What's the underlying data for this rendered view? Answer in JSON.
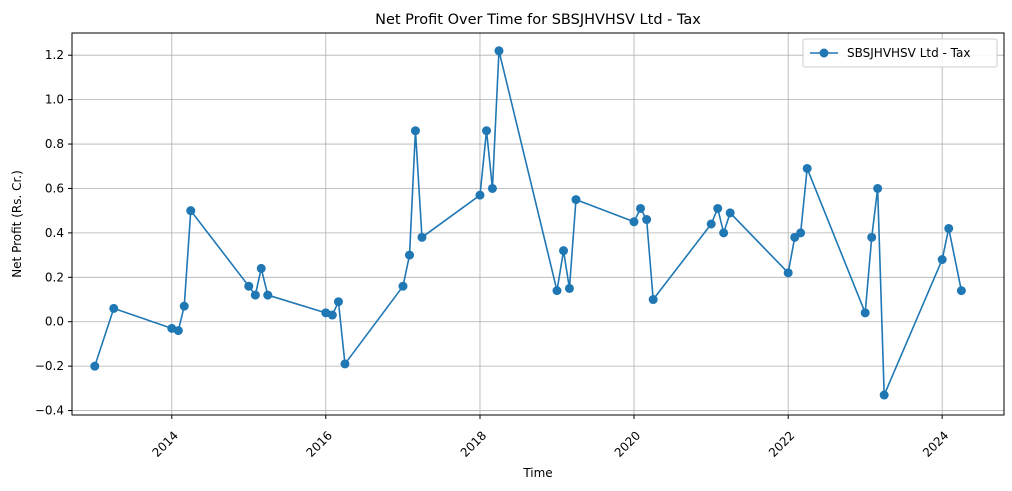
{
  "chart_data": {
    "type": "line",
    "title": "Net Profit Over Time for SBSJHVHSV Ltd - Tax",
    "xlabel": "Time",
    "ylabel": "Net Profit (Rs. Cr.)",
    "x_axis_type": "time",
    "xlim": [
      "2012-09-15",
      "2024-10-20"
    ],
    "ylim": [
      -0.42,
      1.3
    ],
    "x_ticks": [
      "2014",
      "2016",
      "2018",
      "2020",
      "2022",
      "2024"
    ],
    "y_ticks": [
      "−0.4",
      "−0.2",
      "0.0",
      "0.2",
      "0.4",
      "0.6",
      "0.8",
      "1.0",
      "1.2"
    ],
    "grid": true,
    "legend": "top-right",
    "color": "#1f77b4",
    "series": [
      {
        "name": "SBSJHVHSV Ltd - Tax",
        "x": [
          "2013-01-01",
          "2013-04-01",
          "2014-01-01",
          "2014-02-01",
          "2014-03-01",
          "2014-04-01",
          "2015-01-01",
          "2015-02-01",
          "2015-03-01",
          "2015-04-01",
          "2016-01-01",
          "2016-02-01",
          "2016-03-01",
          "2016-04-01",
          "2017-01-01",
          "2017-02-01",
          "2017-03-01",
          "2017-04-01",
          "2018-01-01",
          "2018-02-01",
          "2018-03-01",
          "2018-04-01",
          "2019-01-01",
          "2019-02-01",
          "2019-03-01",
          "2019-04-01",
          "2020-01-01",
          "2020-02-01",
          "2020-03-01",
          "2020-04-01",
          "2021-01-01",
          "2021-02-01",
          "2021-03-01",
          "2021-04-01",
          "2022-01-01",
          "2022-02-01",
          "2022-03-01",
          "2022-04-01",
          "2023-01-01",
          "2023-02-01",
          "2023-03-01",
          "2023-04-01",
          "2024-01-01",
          "2024-02-01",
          "2024-04-01"
        ],
        "y": [
          -0.2,
          0.06,
          -0.03,
          -0.04,
          0.07,
          0.5,
          0.16,
          0.12,
          0.24,
          0.12,
          0.04,
          0.03,
          0.09,
          -0.19,
          0.16,
          0.3,
          0.86,
          0.38,
          0.57,
          0.86,
          0.6,
          1.22,
          0.14,
          0.32,
          0.15,
          0.55,
          0.45,
          0.51,
          0.46,
          0.1,
          0.44,
          0.51,
          0.4,
          0.49,
          0.22,
          0.38,
          0.4,
          0.69,
          0.04,
          0.38,
          0.6,
          -0.33,
          0.28,
          0.42,
          0.14
        ]
      }
    ]
  }
}
